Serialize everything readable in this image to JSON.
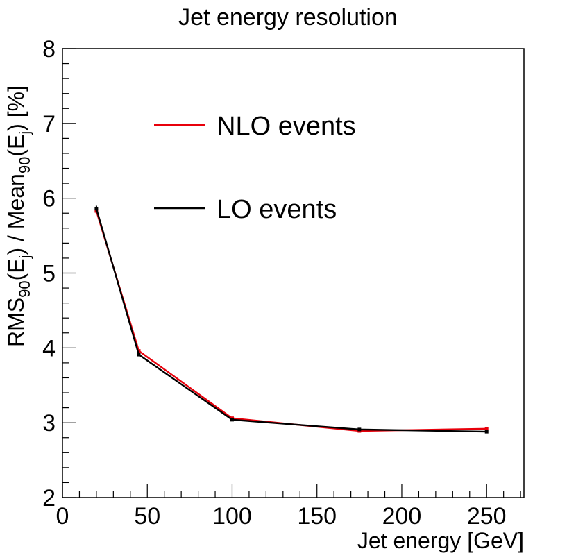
{
  "chart_data": {
    "type": "line",
    "title": "Jet energy resolution",
    "xlabel": "Jet energy [GeV]",
    "ylabel": {
      "parts": [
        {
          "text": "RMS",
          "kind": "normal"
        },
        {
          "text": "90",
          "kind": "sub"
        },
        {
          "text": "(E",
          "kind": "normal"
        },
        {
          "text": "j",
          "kind": "sub"
        },
        {
          "text": ") / Mean",
          "kind": "normal"
        },
        {
          "text": "90",
          "kind": "sub"
        },
        {
          "text": "(E",
          "kind": "normal"
        },
        {
          "text": "j",
          "kind": "sub"
        },
        {
          "text": ") [%]",
          "kind": "normal"
        }
      ]
    },
    "xlim": [
      0,
      272
    ],
    "ylim": [
      2,
      8
    ],
    "x_ticks": [
      {
        "value": 0,
        "label": "0"
      },
      {
        "value": 50,
        "label": "50"
      },
      {
        "value": 100,
        "label": "100"
      },
      {
        "value": 150,
        "label": "150"
      },
      {
        "value": 200,
        "label": "200"
      },
      {
        "value": 250,
        "label": "250"
      }
    ],
    "y_ticks": [
      {
        "value": 2,
        "label": "2"
      },
      {
        "value": 3,
        "label": "3"
      },
      {
        "value": 4,
        "label": "4"
      },
      {
        "value": 5,
        "label": "5"
      },
      {
        "value": 6,
        "label": "6"
      },
      {
        "value": 7,
        "label": "7"
      },
      {
        "value": 8,
        "label": "8"
      }
    ],
    "x_minor_step": 10,
    "y_minor_step": 0.2,
    "grid": false,
    "legend_position": "top-left",
    "series": [
      {
        "name": "NLO events",
        "color": "#e8000b",
        "points": [
          {
            "x": 20,
            "y": 5.83,
            "err": 0.04
          },
          {
            "x": 45,
            "y": 3.96,
            "err": 0.02
          },
          {
            "x": 100,
            "y": 3.06,
            "err": 0.015
          },
          {
            "x": 175,
            "y": 2.89,
            "err": 0.015
          },
          {
            "x": 250,
            "y": 2.92,
            "err": 0.015
          }
        ]
      },
      {
        "name": "LO events",
        "color": "#000000",
        "points": [
          {
            "x": 20,
            "y": 5.86,
            "err": 0.04
          },
          {
            "x": 45,
            "y": 3.91,
            "err": 0.02
          },
          {
            "x": 100,
            "y": 3.04,
            "err": 0.015
          },
          {
            "x": 175,
            "y": 2.91,
            "err": 0.015
          },
          {
            "x": 250,
            "y": 2.88,
            "err": 0.015
          }
        ]
      }
    ]
  }
}
